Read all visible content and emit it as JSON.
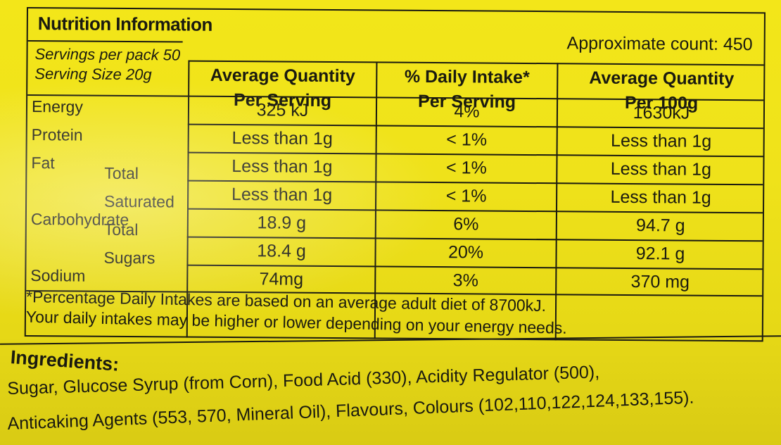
{
  "panel": {
    "title": "Nutrition Information",
    "approximate_count": "Approximate count: 450",
    "servings_per_pack": "Servings per pack  50",
    "serving_size": "Serving Size 20g"
  },
  "headers": {
    "col1": [
      "Average Quantity",
      "Per Serving"
    ],
    "col2": [
      "% Daily Intake*",
      "Per Serving"
    ],
    "col3": [
      "Average Quantity",
      "Per 100g"
    ]
  },
  "rows": [
    {
      "label": "Energy",
      "sub": "",
      "per_serving": "325 kJ",
      "daily_intake": "4%",
      "per_100g": "1630kJ"
    },
    {
      "label": "Protein",
      "sub": "",
      "per_serving": "Less than 1g",
      "daily_intake": "< 1%",
      "per_100g": "Less than 1g"
    },
    {
      "label": "Fat",
      "sub": "Total",
      "per_serving": "Less than 1g",
      "daily_intake": "< 1%",
      "per_100g": "Less than 1g"
    },
    {
      "label": "",
      "sub": "Saturated",
      "per_serving": "Less than 1g",
      "daily_intake": "< 1%",
      "per_100g": "Less than 1g"
    },
    {
      "label": "Carbohydrate",
      "sub": "Total",
      "per_serving": "18.9 g",
      "daily_intake": "6%",
      "per_100g": "94.7 g"
    },
    {
      "label": "",
      "sub": "Sugars",
      "per_serving": "18.4 g",
      "daily_intake": "20%",
      "per_100g": "92.1 g"
    },
    {
      "label": "Sodium",
      "sub": "",
      "per_serving": "74mg",
      "daily_intake": "3%",
      "per_100g": "370 mg"
    }
  ],
  "footnote": {
    "line1": "*Percentage Daily Intakes are based on an average adult diet of 8700kJ.",
    "line2": "Your daily intakes may be higher or lower depending on your energy needs."
  },
  "ingredients": {
    "title": "Ingredients:",
    "line1": "Sugar, Glucose Syrup (from Corn), Food Acid (330), Acidity Regulator (500),",
    "line2": "Anticaking Agents (553, 570, Mineral Oil), Flavours, Colours (102,110,122,124,133,155)."
  },
  "colors": {
    "background": "#efe21a",
    "ink": "#1a1a10"
  }
}
